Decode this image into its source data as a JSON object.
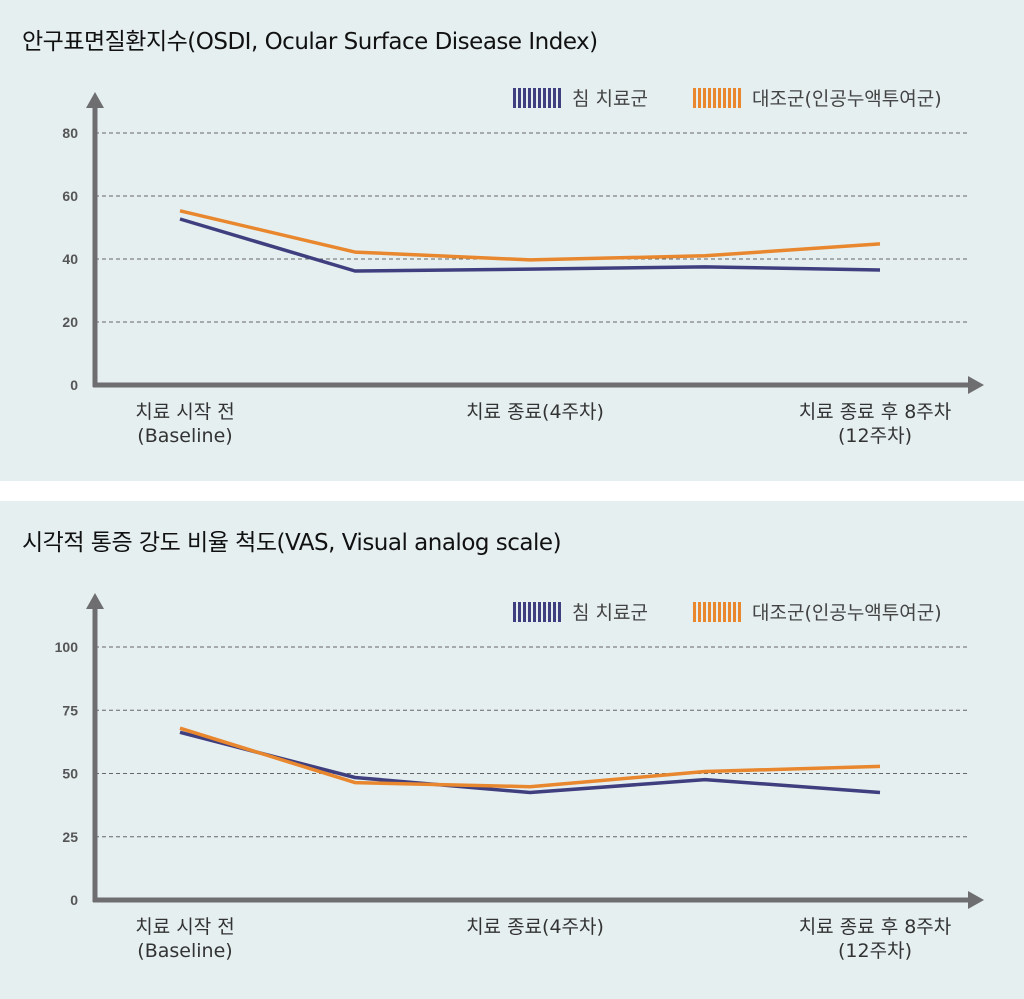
{
  "colors": {
    "treatment": "#3f3f7f",
    "control": "#e8872e",
    "axis": "#6e6e70",
    "grid": "#666666"
  },
  "chart_data": [
    {
      "type": "line",
      "title": "안구표면질환지수(OSDI, Ocular Surface Disease Index)",
      "x": [
        0,
        1,
        2,
        3,
        4
      ],
      "x_tick_labels": [
        {
          "x": 0,
          "lines": [
            "치료 시작 전",
            "(Baseline)"
          ]
        },
        {
          "x": 2,
          "lines": [
            "치료 종료(4주차)"
          ]
        },
        {
          "x": 4,
          "lines": [
            "치료 종료 후 8주차",
            "(12주차)"
          ]
        }
      ],
      "yticks": [
        0,
        20,
        40,
        60,
        80
      ],
      "ylim": [
        0,
        95
      ],
      "grid": true,
      "legend_position": "top-right",
      "series": [
        {
          "name": "침 치료군",
          "color": "#3f3f7f",
          "values": [
            52.7,
            36.2,
            36.8,
            37.5,
            36.5
          ]
        },
        {
          "name": "대조군(인공누액투여군)",
          "color": "#e8872e",
          "values": [
            55.3,
            42.2,
            39.7,
            41.0,
            44.8
          ]
        }
      ]
    },
    {
      "type": "line",
      "title": "시각적 통증 강도 비율 척도(VAS, Visual analog scale)",
      "x": [
        0,
        1,
        2,
        3,
        4
      ],
      "x_tick_labels": [
        {
          "x": 0,
          "lines": [
            "치료 시작 전",
            "(Baseline)"
          ]
        },
        {
          "x": 2,
          "lines": [
            "치료 종료(4주차)"
          ]
        },
        {
          "x": 4,
          "lines": [
            "치료 종료 후 8주차",
            "(12주차)"
          ]
        }
      ],
      "yticks": [
        0,
        25,
        50,
        75,
        100
      ],
      "ylim": [
        0,
        118
      ],
      "grid": true,
      "legend_position": "top-right",
      "series": [
        {
          "name": "침 치료군",
          "color": "#3f3f7f",
          "values": [
            66.3,
            48.4,
            42.5,
            47.6,
            42.5
          ]
        },
        {
          "name": "대조군(인공누액투여군)",
          "color": "#e8872e",
          "values": [
            67.9,
            46.4,
            44.8,
            50.8,
            52.8
          ]
        }
      ]
    }
  ]
}
